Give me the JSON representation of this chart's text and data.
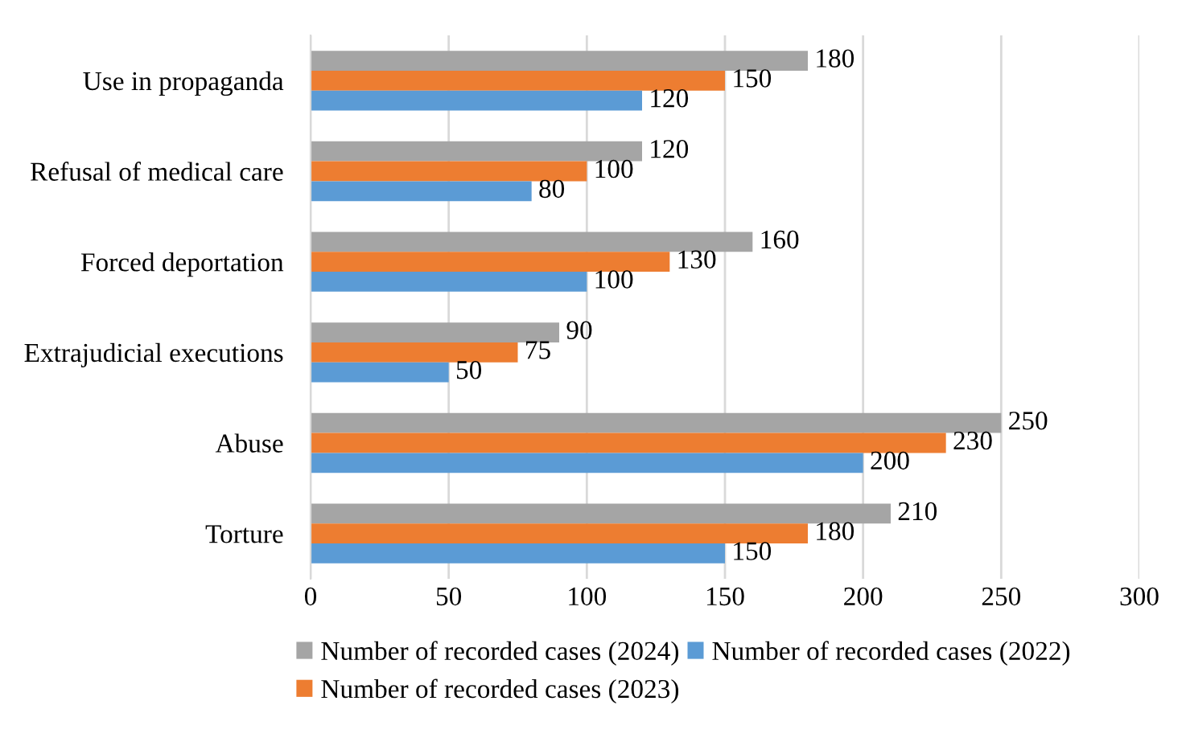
{
  "chart_data": {
    "type": "bar",
    "orientation": "horizontal",
    "categories": [
      "Use in propaganda",
      "Refusal of medical care",
      "Forced deportation",
      "Extrajudicial executions",
      "Abuse",
      "Torture"
    ],
    "series": [
      {
        "name": "Number of recorded cases (2024)",
        "color": "#a5a5a5",
        "values": [
          180,
          120,
          160,
          90,
          250,
          210
        ]
      },
      {
        "name": "Number of recorded cases (2023)",
        "color": "#ed7d31",
        "values": [
          150,
          100,
          130,
          75,
          230,
          180
        ]
      },
      {
        "name": "Number of recorded cases (2022)",
        "color": "#5b9bd5",
        "values": [
          120,
          80,
          100,
          50,
          200,
          150
        ]
      }
    ],
    "xlim": [
      0,
      300
    ],
    "xticks": [
      0,
      50,
      100,
      150,
      200,
      250,
      300
    ],
    "grid": "x",
    "legend": "bottom",
    "data_labels": true
  }
}
